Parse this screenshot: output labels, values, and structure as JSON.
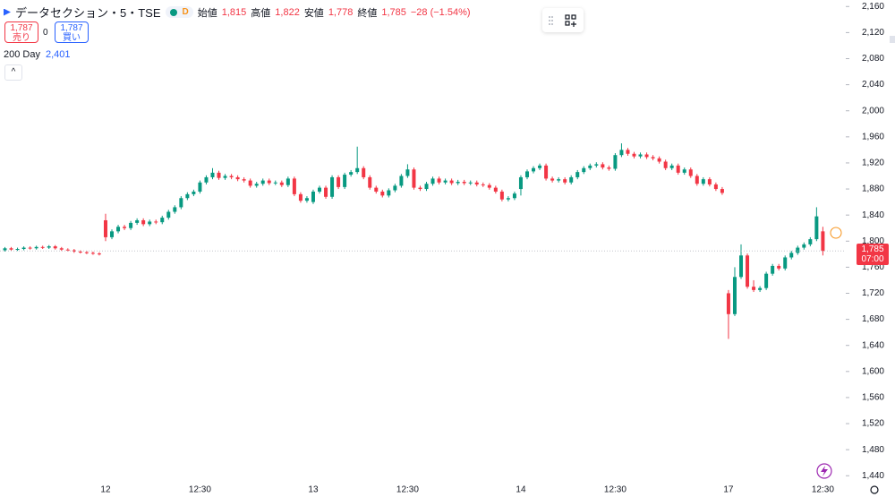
{
  "header": {
    "symbol": "データセクション・5・TSE",
    "badge": "D",
    "legend": [
      {
        "label": "始値",
        "value": "1,815"
      },
      {
        "label": "高値",
        "value": "1,822"
      },
      {
        "label": "安値",
        "value": "1,778"
      },
      {
        "label": "終値",
        "value": "1,785"
      }
    ],
    "change": "−28 (−1.54%)"
  },
  "trade": {
    "sell": {
      "price": "1,787",
      "label": "売り"
    },
    "spread": "0",
    "buy": {
      "price": "1,787",
      "label": "買い"
    }
  },
  "indicator": {
    "name": "200 Day",
    "value": "2,401"
  },
  "chart_data": {
    "type": "candlestick",
    "up_color": "#089981",
    "down_color": "#f23645",
    "last_price": {
      "label": "1,785",
      "countdown": "07:00"
    },
    "categories": [
      null,
      null,
      null,
      null,
      null,
      null,
      null,
      null,
      null,
      null,
      null,
      null,
      null,
      null,
      null,
      null,
      "12",
      null,
      null,
      null,
      null,
      null,
      null,
      null,
      null,
      null,
      null,
      null,
      null,
      null,
      null,
      "12:30",
      null,
      null,
      null,
      null,
      null,
      null,
      null,
      null,
      null,
      null,
      null,
      null,
      null,
      null,
      null,
      null,
      null,
      "13",
      null,
      null,
      null,
      null,
      null,
      null,
      null,
      null,
      null,
      null,
      null,
      null,
      null,
      null,
      "12:30",
      null,
      null,
      null,
      null,
      null,
      null,
      null,
      null,
      null,
      null,
      null,
      null,
      null,
      null,
      null,
      null,
      null,
      "14",
      null,
      null,
      null,
      null,
      null,
      null,
      null,
      null,
      null,
      null,
      null,
      null,
      null,
      null,
      "12:30",
      null,
      null,
      null,
      null,
      null,
      null,
      null,
      null,
      null,
      null,
      null,
      null,
      null,
      null,
      null,
      null,
      null,
      "17",
      null,
      null,
      null,
      null,
      null,
      null,
      null,
      null,
      null,
      null,
      null,
      null,
      null,
      null,
      "12:30"
    ],
    "open": [
      1786,
      1789,
      1787,
      1788,
      1790,
      1789,
      1791,
      1790,
      1792,
      1789,
      1787,
      1786,
      1784,
      1783,
      1782,
      1781,
      1832,
      1806,
      1815,
      1822,
      1820,
      1828,
      1832,
      1826,
      1830,
      1829,
      1836,
      1845,
      1852,
      1866,
      1872,
      1876,
      1890,
      1898,
      1905,
      1897,
      1900,
      1898,
      1895,
      1893,
      1885,
      1888,
      1893,
      1889,
      1890,
      1886,
      1896,
      1872,
      1862,
      1860,
      1876,
      1882,
      1868,
      1898,
      1883,
      1902,
      1906,
      1912,
      1898,
      1882,
      1876,
      1870,
      1878,
      1885,
      1900,
      1910,
      1882,
      1880,
      1888,
      1896,
      1890,
      1893,
      1889,
      1891,
      1889,
      1890,
      1887,
      1886,
      1882,
      1876,
      1864,
      1866,
      1880,
      1898,
      1907,
      1912,
      1916,
      1896,
      1893,
      1895,
      1890,
      1898,
      1906,
      1912,
      1916,
      1918,
      1913,
      1911,
      1932,
      1940,
      1934,
      1930,
      1933,
      1929,
      1927,
      1922,
      1912,
      1916,
      1905,
      1910,
      1900,
      1888,
      1895,
      1887,
      1880,
      1720,
      1688,
      1745,
      1778,
      1730,
      1725,
      1728,
      1750,
      1762,
      1758,
      1775,
      1782,
      1790,
      1795,
      1803,
      1815
    ],
    "high": [
      1791,
      1791,
      1790,
      1792,
      1792,
      1793,
      1793,
      1794,
      1794,
      1791,
      1789,
      1788,
      1786,
      1785,
      1784,
      1783,
      1842,
      1818,
      1825,
      1825,
      1831,
      1835,
      1835,
      1833,
      1833,
      1839,
      1848,
      1855,
      1869,
      1875,
      1879,
      1893,
      1901,
      1912,
      1908,
      1903,
      1903,
      1901,
      1898,
      1896,
      1891,
      1896,
      1896,
      1893,
      1893,
      1899,
      1899,
      1875,
      1869,
      1879,
      1885,
      1885,
      1901,
      1901,
      1905,
      1909,
      1945,
      1915,
      1901,
      1885,
      1879,
      1881,
      1888,
      1903,
      1918,
      1913,
      1885,
      1891,
      1899,
      1899,
      1896,
      1896,
      1894,
      1894,
      1893,
      1893,
      1890,
      1889,
      1885,
      1879,
      1869,
      1876,
      1901,
      1910,
      1915,
      1919,
      1919,
      1899,
      1898,
      1898,
      1901,
      1909,
      1915,
      1919,
      1921,
      1921,
      1916,
      1935,
      1950,
      1943,
      1937,
      1936,
      1936,
      1932,
      1930,
      1925,
      1919,
      1919,
      1913,
      1913,
      1903,
      1898,
      1898,
      1890,
      1883,
      1725,
      1760,
      1795,
      1781,
      1740,
      1731,
      1753,
      1765,
      1765,
      1778,
      1785,
      1793,
      1798,
      1806,
      1852,
      1822
    ],
    "low": [
      1784,
      1785,
      1785,
      1786,
      1787,
      1787,
      1788,
      1788,
      1787,
      1785,
      1784,
      1782,
      1781,
      1780,
      1779,
      1778,
      1800,
      1803,
      1812,
      1817,
      1817,
      1825,
      1823,
      1823,
      1826,
      1826,
      1833,
      1842,
      1849,
      1863,
      1869,
      1873,
      1887,
      1895,
      1894,
      1894,
      1895,
      1892,
      1890,
      1882,
      1882,
      1885,
      1886,
      1886,
      1883,
      1883,
      1869,
      1859,
      1859,
      1857,
      1873,
      1865,
      1865,
      1880,
      1880,
      1899,
      1903,
      1895,
      1879,
      1873,
      1867,
      1867,
      1875,
      1882,
      1897,
      1879,
      1877,
      1877,
      1885,
      1887,
      1887,
      1886,
      1886,
      1886,
      1886,
      1884,
      1883,
      1879,
      1873,
      1861,
      1861,
      1863,
      1870,
      1895,
      1904,
      1909,
      1893,
      1890,
      1890,
      1887,
      1887,
      1895,
      1903,
      1909,
      1913,
      1910,
      1908,
      1908,
      1929,
      1931,
      1927,
      1927,
      1926,
      1924,
      1919,
      1909,
      1909,
      1902,
      1902,
      1897,
      1885,
      1885,
      1884,
      1877,
      1871,
      1650,
      1685,
      1742,
      1727,
      1722,
      1722,
      1725,
      1747,
      1755,
      1755,
      1772,
      1779,
      1787,
      1792,
      1800,
      1778
    ],
    "close": [
      1789,
      1787,
      1788,
      1790,
      1789,
      1791,
      1790,
      1792,
      1789,
      1787,
      1786,
      1784,
      1783,
      1782,
      1781,
      1780,
      1806,
      1815,
      1822,
      1820,
      1828,
      1832,
      1826,
      1830,
      1829,
      1836,
      1845,
      1852,
      1866,
      1872,
      1876,
      1890,
      1898,
      1905,
      1897,
      1900,
      1898,
      1895,
      1893,
      1885,
      1888,
      1893,
      1889,
      1890,
      1886,
      1896,
      1872,
      1862,
      1866,
      1876,
      1882,
      1868,
      1898,
      1883,
      1902,
      1906,
      1912,
      1898,
      1882,
      1876,
      1870,
      1878,
      1885,
      1900,
      1910,
      1882,
      1880,
      1888,
      1896,
      1890,
      1893,
      1889,
      1891,
      1889,
      1890,
      1887,
      1886,
      1882,
      1876,
      1864,
      1866,
      1873,
      1898,
      1907,
      1912,
      1916,
      1896,
      1893,
      1895,
      1890,
      1898,
      1906,
      1912,
      1916,
      1918,
      1913,
      1911,
      1932,
      1940,
      1934,
      1930,
      1933,
      1929,
      1927,
      1922,
      1912,
      1916,
      1905,
      1910,
      1900,
      1888,
      1895,
      1887,
      1880,
      1874,
      1688,
      1745,
      1778,
      1730,
      1725,
      1728,
      1750,
      1762,
      1758,
      1775,
      1782,
      1790,
      1795,
      1803,
      1838,
      1785
    ],
    "ylim": [
      1428,
      2170
    ],
    "yticks": [
      {
        "value": 1440,
        "label": "1,440"
      },
      {
        "value": 1480,
        "label": "1,480"
      },
      {
        "value": 1520,
        "label": "1,520"
      },
      {
        "value": 1560,
        "label": "1,560"
      },
      {
        "value": 1600,
        "label": "1,600"
      },
      {
        "value": 1640,
        "label": "1,640"
      },
      {
        "value": 1680,
        "label": "1,680"
      },
      {
        "value": 1720,
        "label": "1,720"
      },
      {
        "value": 1760,
        "label": "1,760"
      },
      {
        "value": 1800,
        "label": "1,800"
      },
      {
        "value": 1840,
        "label": "1,840"
      },
      {
        "value": 1880,
        "label": "1,880"
      },
      {
        "value": 1920,
        "label": "1,920"
      },
      {
        "value": 1960,
        "label": "1,960"
      },
      {
        "value": 2000,
        "label": "2,000"
      },
      {
        "value": 2040,
        "label": "2,040"
      },
      {
        "value": 2080,
        "label": "2,080"
      },
      {
        "value": 2120,
        "label": "2,120"
      },
      {
        "value": 2160,
        "label": "2,160"
      }
    ]
  }
}
